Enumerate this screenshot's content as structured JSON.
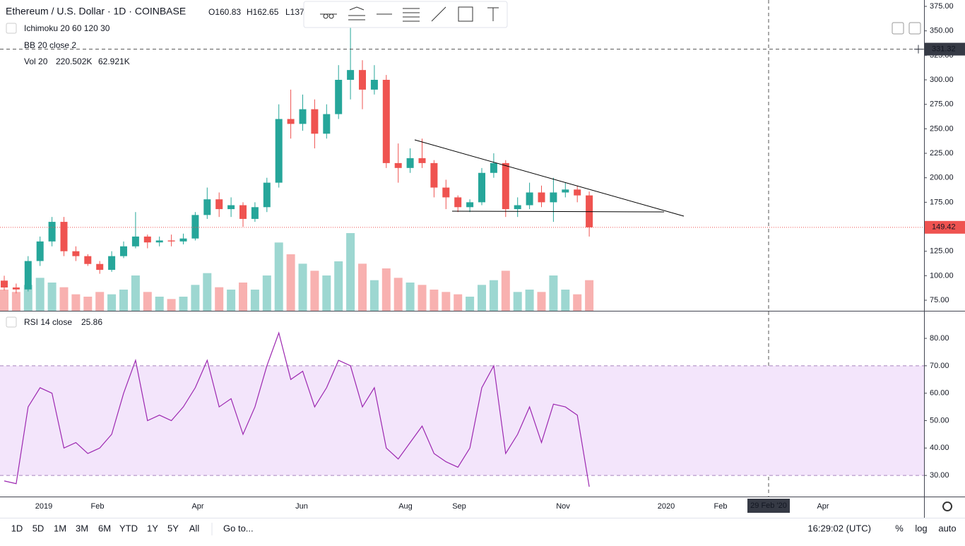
{
  "chart_data": [
    {
      "type": "candlestick",
      "title": "Ethereum / U.S. Dollar · 1D · COINBASE",
      "legend": [
        "O160.83",
        "H162.65",
        "L137"
      ],
      "indicators": [
        "Ichimoku 20 60 120 30",
        "BB 20 close 2"
      ],
      "volume_title": "Vol 20",
      "volume_legend": [
        "220.502K",
        "62.921K"
      ],
      "open": [
        95,
        88,
        86,
        115,
        135,
        155,
        125,
        120,
        112,
        106,
        120,
        130,
        140,
        134,
        136,
        135,
        138,
        162,
        178,
        168,
        172,
        158,
        170,
        195,
        260,
        255,
        270,
        245,
        265,
        300,
        310,
        290,
        300,
        215,
        210,
        220,
        215,
        190,
        180,
        170,
        175,
        205,
        215,
        168,
        172,
        185,
        175,
        185,
        188,
        182
      ],
      "high": [
        100,
        92,
        120,
        140,
        160,
        160,
        130,
        122,
        115,
        125,
        135,
        165,
        142,
        140,
        142,
        143,
        165,
        190,
        185,
        180,
        175,
        175,
        200,
        275,
        290,
        285,
        280,
        275,
        315,
        355,
        320,
        315,
        305,
        235,
        230,
        240,
        218,
        198,
        182,
        178,
        210,
        225,
        218,
        180,
        195,
        192,
        200,
        195,
        192,
        186
      ],
      "low": [
        85,
        82,
        84,
        110,
        130,
        120,
        115,
        110,
        102,
        104,
        118,
        128,
        128,
        130,
        130,
        132,
        136,
        158,
        160,
        160,
        150,
        155,
        165,
        190,
        240,
        248,
        230,
        240,
        260,
        280,
        270,
        285,
        210,
        195,
        205,
        210,
        180,
        168,
        165,
        165,
        172,
        200,
        160,
        160,
        168,
        170,
        155,
        180,
        175,
        140
      ],
      "close": [
        88,
        86,
        115,
        135,
        155,
        125,
        120,
        112,
        106,
        120,
        130,
        140,
        134,
        136,
        135,
        138,
        162,
        178,
        168,
        172,
        158,
        170,
        195,
        260,
        255,
        270,
        245,
        265,
        300,
        310,
        290,
        300,
        215,
        210,
        220,
        215,
        190,
        180,
        170,
        175,
        205,
        215,
        168,
        172,
        185,
        175,
        185,
        188,
        182,
        149.42
      ],
      "volume": [
        90000,
        80000,
        110000,
        140000,
        120000,
        100000,
        70000,
        60000,
        80000,
        70000,
        90000,
        150000,
        80000,
        60000,
        50000,
        60000,
        110000,
        160000,
        100000,
        90000,
        120000,
        90000,
        150000,
        290000,
        240000,
        200000,
        170000,
        150000,
        210000,
        330000,
        200000,
        130000,
        180000,
        140000,
        120000,
        110000,
        90000,
        80000,
        70000,
        60000,
        110000,
        130000,
        170000,
        80000,
        90000,
        80000,
        150000,
        90000,
        70000,
        130000
      ],
      "up_color": "#26a69a",
      "down_color": "#ef5350",
      "ylim": [
        64.2,
        381.5
      ],
      "yticks": [
        {
          "value": 75,
          "label": "75.00"
        },
        {
          "value": 100,
          "label": "100.00"
        },
        {
          "value": 125,
          "label": "125.00"
        },
        {
          "value": 150,
          "label": "150.00"
        },
        {
          "value": 175,
          "label": "175.00"
        },
        {
          "value": 200,
          "label": "200.00"
        },
        {
          "value": 225,
          "label": "225.00"
        },
        {
          "value": 250,
          "label": "250.00"
        },
        {
          "value": 275,
          "label": "275.00"
        },
        {
          "value": 300,
          "label": "300.00"
        },
        {
          "value": 325,
          "label": "325.00"
        },
        {
          "value": 350,
          "label": "350.00"
        },
        {
          "value": 375,
          "label": "375.00"
        }
      ],
      "last_price": 149.42,
      "crosshair_price": 331.32
    },
    {
      "type": "line",
      "title": "RSI 14 close",
      "last_value": 25.86,
      "color": "#9c27b0",
      "values": [
        28,
        27,
        55,
        62,
        60,
        40,
        42,
        38,
        40,
        45,
        60,
        72,
        50,
        52,
        50,
        55,
        62,
        72,
        55,
        58,
        45,
        55,
        70,
        82,
        65,
        68,
        55,
        62,
        72,
        70,
        55,
        62,
        40,
        36,
        42,
        48,
        38,
        35,
        33,
        40,
        62,
        70,
        38,
        45,
        55,
        42,
        56,
        55,
        52,
        25.86
      ],
      "ylim": [
        22.3,
        89.8
      ],
      "band": [
        30,
        70
      ],
      "band_color": "#f3e5fb",
      "yticks": [
        {
          "value": 30,
          "label": "30.00"
        },
        {
          "value": 40,
          "label": "40.00"
        },
        {
          "value": 50,
          "label": "50.00"
        },
        {
          "value": 60,
          "label": "60.00"
        },
        {
          "value": 70,
          "label": "70.00"
        },
        {
          "value": 80,
          "label": "80.00"
        }
      ]
    }
  ],
  "time_axis": [
    "2019",
    "Feb",
    "Apr",
    "Jun",
    "Aug",
    "Sep",
    "Nov",
    "2020",
    "Feb",
    "Apr"
  ],
  "crosshair_date": "29 Feb '20",
  "ranges": [
    "1D",
    "5D",
    "1M",
    "3M",
    "6M",
    "YTD",
    "1Y",
    "5Y",
    "All"
  ],
  "goto": "Go to...",
  "clock": "16:29:02 (UTC)",
  "scale_buttons": [
    "%",
    "log",
    "auto"
  ]
}
